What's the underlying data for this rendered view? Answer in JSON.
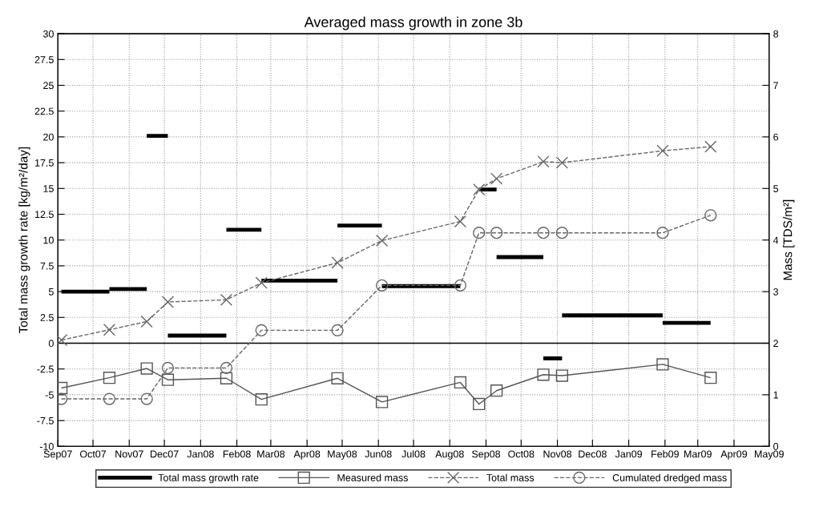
{
  "chart_data": {
    "type": "line",
    "title": "Averaged mass growth in zone 3b",
    "ylabel": "Total mass growth rate [kg/m²/day]",
    "y2label": "Mass [TDS/m²]",
    "x": [
      "2007-09-04",
      "2007-10-15",
      "2007-11-16",
      "2007-12-04",
      "2008-01-23",
      "2008-02-22",
      "2008-04-27",
      "2008-06-04",
      "2008-08-10",
      "2008-08-26",
      "2008-09-10",
      "2008-10-20",
      "2008-11-05",
      "2009-01-30",
      "2009-03-12"
    ],
    "series": [
      {
        "name": "Total mass growth rate",
        "color": "#000000",
        "marker": "none",
        "line_style": "solid",
        "x": [
          "2007-09-04",
          "2007-10-15"
        ],
        "values": [
          5.0,
          5.0
        ]
      },
      {
        "color": "#000000",
        "marker": "none",
        "line_style": "solid",
        "x": [
          "2007-10-15",
          "2007-11-16"
        ],
        "values": [
          5.25,
          5.25
        ]
      },
      {
        "color": "#000000",
        "marker": "none",
        "line_style": "solid",
        "x": [
          "2007-11-16",
          "2007-12-04"
        ],
        "values": [
          20.1,
          20.1
        ]
      },
      {
        "color": "#000000",
        "marker": "none",
        "line_style": "solid",
        "x": [
          "2007-12-04",
          "2008-01-23"
        ],
        "values": [
          0.74,
          0.74
        ]
      },
      {
        "color": "#000000",
        "marker": "none",
        "line_style": "solid",
        "x": [
          "2008-01-23",
          "2008-02-22"
        ],
        "values": [
          11.0,
          11.0
        ]
      },
      {
        "color": "#000000",
        "marker": "none",
        "line_style": "solid",
        "x": [
          "2008-02-22",
          "2008-04-27"
        ],
        "values": [
          6.07,
          6.07
        ]
      },
      {
        "color": "#000000",
        "marker": "none",
        "line_style": "solid",
        "x": [
          "2008-04-27",
          "2008-06-04"
        ],
        "values": [
          11.4,
          11.4
        ]
      },
      {
        "color": "#000000",
        "marker": "none",
        "line_style": "solid",
        "x": [
          "2008-06-04",
          "2008-08-10"
        ],
        "values": [
          5.53,
          5.53
        ]
      },
      {
        "color": "#000000",
        "marker": "none",
        "line_style": "solid",
        "x": [
          "2008-08-26",
          "2008-09-10"
        ],
        "values": [
          14.9,
          14.9
        ]
      },
      {
        "color": "#000000",
        "marker": "none",
        "line_style": "solid",
        "x": [
          "2008-09-10",
          "2008-10-20"
        ],
        "values": [
          8.35,
          8.35
        ]
      },
      {
        "color": "#000000",
        "marker": "none",
        "line_style": "solid",
        "x": [
          "2008-10-20",
          "2008-11-05"
        ],
        "values": [
          -1.47,
          -1.47
        ]
      },
      {
        "color": "#000000",
        "marker": "none",
        "line_style": "solid",
        "x": [
          "2008-11-05",
          "2009-01-30"
        ],
        "values": [
          2.7,
          2.7
        ]
      },
      {
        "color": "#000000",
        "marker": "none",
        "line_style": "solid",
        "x": [
          "2009-01-30",
          "2009-03-12"
        ],
        "values": [
          1.97,
          1.97
        ]
      },
      {
        "name": "Measured mass",
        "color": "#555555",
        "axis": "y2",
        "marker": "square",
        "line_style": "solid",
        "values": [
          1.13,
          1.33,
          1.51,
          1.29,
          1.32,
          0.91,
          1.32,
          0.86,
          1.24,
          0.82,
          1.08,
          1.39,
          1.37,
          1.59,
          1.33
        ]
      },
      {
        "name": "Total mass",
        "color": "#666666",
        "axis": "y2",
        "marker": "cross",
        "line_style": "dashed",
        "values": [
          2.06,
          2.26,
          2.42,
          2.8,
          2.84,
          3.17,
          3.56,
          3.99,
          4.36,
          4.98,
          5.19,
          5.52,
          5.5,
          5.73,
          5.81
        ]
      },
      {
        "name": "Cumulated dredged mass",
        "color": "#666666",
        "axis": "y2",
        "marker": "circle",
        "line_style": "dashed",
        "values": [
          0.92,
          0.92,
          0.92,
          1.52,
          1.52,
          2.25,
          2.25,
          3.12,
          3.12,
          4.14,
          4.14,
          4.14,
          4.14,
          4.14,
          4.48
        ]
      }
    ],
    "xlim": [
      "2007-09-01",
      "2009-05-01"
    ],
    "xticks": [
      {
        "value": "2007-09-01",
        "label": "Sep07"
      },
      {
        "value": "2007-10-01",
        "label": "Oct07"
      },
      {
        "value": "2007-11-01",
        "label": "Nov07"
      },
      {
        "value": "2007-12-01",
        "label": "Dec07"
      },
      {
        "value": "2008-01-01",
        "label": "Jan08"
      },
      {
        "value": "2008-02-01",
        "label": "Feb08"
      },
      {
        "value": "2008-03-01",
        "label": "Mar08"
      },
      {
        "value": "2008-04-01",
        "label": "Apr08"
      },
      {
        "value": "2008-05-01",
        "label": "May08"
      },
      {
        "value": "2008-06-01",
        "label": "Jun08"
      },
      {
        "value": "2008-07-01",
        "label": "Jul08"
      },
      {
        "value": "2008-08-01",
        "label": "Aug08"
      },
      {
        "value": "2008-09-01",
        "label": "Sep08"
      },
      {
        "value": "2008-10-01",
        "label": "Oct08"
      },
      {
        "value": "2008-11-01",
        "label": "Nov08"
      },
      {
        "value": "2008-12-01",
        "label": "Dec08"
      },
      {
        "value": "2009-01-01",
        "label": "Jan09"
      },
      {
        "value": "2009-02-01",
        "label": "Feb09"
      },
      {
        "value": "2009-03-01",
        "label": "Mar09"
      },
      {
        "value": "2009-04-01",
        "label": "Apr09"
      },
      {
        "value": "2009-05-01",
        "label": "May09"
      }
    ],
    "ylim": [
      -10,
      30
    ],
    "yticks": [
      -10,
      -7.5,
      -5,
      -2.5,
      0,
      2.5,
      5,
      7.5,
      10,
      12.5,
      15,
      17.5,
      20,
      22.5,
      25,
      27.5,
      30
    ],
    "y2lim": [
      0,
      8
    ],
    "y2ticks": [
      0,
      1,
      2,
      3,
      4,
      5,
      6,
      7,
      8
    ],
    "ref_lines": [
      {
        "axis": "y",
        "value": 0,
        "color": "#000000",
        "line_style": "solid"
      }
    ],
    "grid": true,
    "legend": "bottom"
  }
}
